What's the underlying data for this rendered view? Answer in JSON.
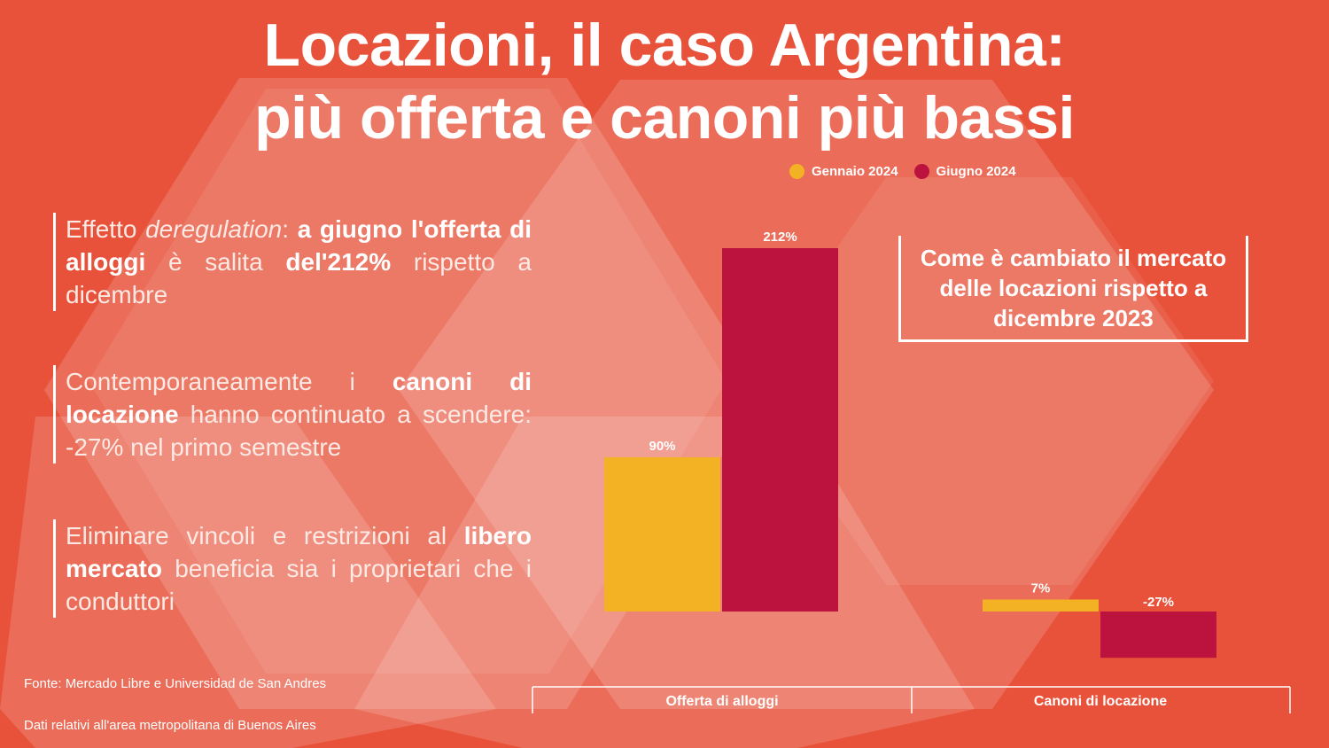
{
  "title": {
    "line1": "Locazioni, il caso Argentina:",
    "line2": "più offerta e canoni più bassi"
  },
  "colors": {
    "background": "#e8523a",
    "gennaio": "#f2b224",
    "giugno": "#bb133e"
  },
  "points": [
    {
      "segments": [
        {
          "text": "Effetto ",
          "style": "normal"
        },
        {
          "text": "deregulation",
          "style": "italic"
        },
        {
          "text": ": ",
          "style": "normal"
        },
        {
          "text": "a giugno l'offerta di alloggi",
          "style": "bold"
        },
        {
          "text": " è salita ",
          "style": "normal"
        },
        {
          "text": "del'212%",
          "style": "bold"
        },
        {
          "text": " rispetto  a dicembre",
          "style": "normal"
        }
      ]
    },
    {
      "segments": [
        {
          "text": "Contemporaneamente i ",
          "style": "normal"
        },
        {
          "text": "canoni di locazione",
          "style": "bold"
        },
        {
          "text": " hanno continuato a scendere: -27% nel primo semestre",
          "style": "normal"
        }
      ]
    },
    {
      "segments": [
        {
          "text": "Eliminare vincoli e restrizioni al ",
          "style": "normal"
        },
        {
          "text": "libero mercato",
          "style": "bold"
        },
        {
          "text": " beneficia sia i proprietari che i conduttori",
          "style": "normal"
        }
      ]
    }
  ],
  "callout": {
    "text": "Come è cambiato il mercato delle locazioni rispetto a dicembre 2023"
  },
  "footnotes": {
    "source": "Fonte: Mercado Libre e Universidad  de San Andres",
    "note": "Dati relativi all'area metropolitana di Buenos Aires"
  },
  "chart_data": {
    "type": "bar",
    "categories": [
      "Offerta di alloggi",
      "Canoni di locazione"
    ],
    "series": [
      {
        "name": "Gennaio 2024",
        "values": [
          90,
          7
        ],
        "labels": [
          "90%",
          "7%"
        ]
      },
      {
        "name": "Giugno 2024",
        "values": [
          212,
          -27
        ],
        "labels": [
          "212%",
          "-27%"
        ]
      }
    ],
    "unit": "%",
    "ylim": [
      -30,
      212
    ],
    "legend_position": "top-right",
    "grid": false
  }
}
